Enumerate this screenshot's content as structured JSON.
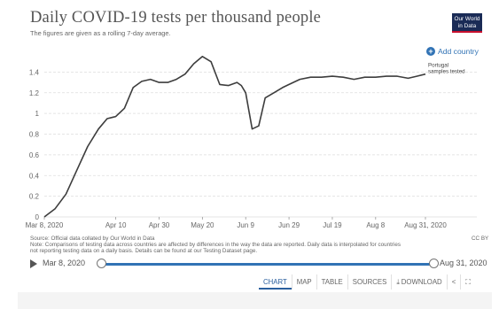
{
  "header": {
    "title": "Daily COVID-19 tests per thousand people",
    "subtitle": "The figures are given as a rolling 7-day average.",
    "logo_line1": "Our World",
    "logo_line2": "in Data"
  },
  "controls": {
    "add_country": "Add country"
  },
  "series_label_line1": "Portugal",
  "series_label_line2": "samples tested",
  "chart_data": {
    "type": "line",
    "title": "Daily COVID-19 tests per thousand people",
    "subtitle": "The figures are given as a rolling 7-day average.",
    "xlabel": "",
    "ylabel": "",
    "ylim": [
      0,
      1.6
    ],
    "yticks": [
      0,
      0.2,
      0.4,
      0.6,
      0.8,
      1,
      1.2,
      1.4
    ],
    "xticks": [
      "Mar 8, 2020",
      "Apr 10",
      "Apr 30",
      "May 20",
      "Jun 9",
      "Jun 29",
      "Jul 19",
      "Aug 8",
      "Aug 31, 2020"
    ],
    "grid": true,
    "series": [
      {
        "name": "Portugal",
        "color": "#3d3d3d",
        "x": [
          "2020-03-08",
          "2020-03-13",
          "2020-03-18",
          "2020-03-23",
          "2020-03-28",
          "2020-04-02",
          "2020-04-06",
          "2020-04-10",
          "2020-04-14",
          "2020-04-18",
          "2020-04-22",
          "2020-04-26",
          "2020-04-30",
          "2020-05-04",
          "2020-05-08",
          "2020-05-12",
          "2020-05-16",
          "2020-05-20",
          "2020-05-24",
          "2020-05-28",
          "2020-06-01",
          "2020-06-05",
          "2020-06-07",
          "2020-06-09",
          "2020-06-12",
          "2020-06-15",
          "2020-06-18",
          "2020-06-22",
          "2020-06-26",
          "2020-06-29",
          "2020-07-04",
          "2020-07-09",
          "2020-07-14",
          "2020-07-19",
          "2020-07-24",
          "2020-07-29",
          "2020-08-03",
          "2020-08-08",
          "2020-08-13",
          "2020-08-18",
          "2020-08-23",
          "2020-08-27",
          "2020-08-31"
        ],
        "values": [
          0.0,
          0.08,
          0.22,
          0.45,
          0.68,
          0.85,
          0.95,
          0.97,
          1.05,
          1.25,
          1.31,
          1.33,
          1.3,
          1.3,
          1.33,
          1.38,
          1.48,
          1.55,
          1.5,
          1.28,
          1.27,
          1.3,
          1.27,
          1.2,
          0.85,
          0.88,
          1.15,
          1.2,
          1.25,
          1.28,
          1.33,
          1.35,
          1.35,
          1.36,
          1.35,
          1.33,
          1.35,
          1.35,
          1.36,
          1.36,
          1.34,
          1.36,
          1.38
        ]
      }
    ]
  },
  "footnote": {
    "line1": "Source: Official data collated by Our World in Data",
    "line2": "Note: Comparisons of testing data across countries are affected by differences in the way the data are reported. Daily data is interpolated for countries",
    "line3": "not reporting testing data on a daily basis. Details can be found at our Testing Dataset page.",
    "license": "CC BY"
  },
  "timeline": {
    "start": "Mar 8, 2020",
    "end": "Aug 31, 2020"
  },
  "tabs": {
    "chart": "CHART",
    "map": "MAP",
    "table": "TABLE",
    "sources": "SOURCES",
    "download": "DOWNLOAD"
  }
}
